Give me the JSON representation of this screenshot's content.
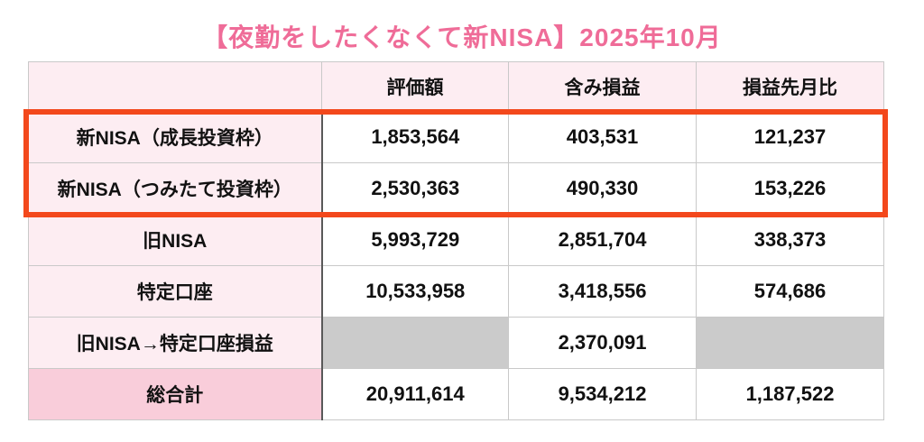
{
  "title": {
    "text": "【夜勤をしたくなくて新NISA】2025年10月"
  },
  "chart_data": {
    "type": "table",
    "title": "【夜勤をしたくなくて新NISA】2025年10月",
    "columns": [
      "",
      "評価額",
      "含み損益",
      "損益先月比"
    ],
    "rows": [
      {
        "label": "新NISA（成長投資枠）",
        "values": [
          "1,853,564",
          "403,531",
          "121,237"
        ],
        "highlighted": true
      },
      {
        "label": "新NISA（つみたて投資枠）",
        "values": [
          "2,530,363",
          "490,330",
          "153,226"
        ],
        "highlighted": true
      },
      {
        "label": "旧NISA",
        "values": [
          "5,993,729",
          "2,851,704",
          "338,373"
        ],
        "highlighted": false
      },
      {
        "label": "特定口座",
        "values": [
          "10,533,958",
          "3,418,556",
          "574,686"
        ],
        "highlighted": false
      },
      {
        "label": "旧NISA→特定口座損益",
        "values": [
          "",
          "2,370,091",
          ""
        ],
        "grayed_columns": [
          0,
          2
        ],
        "highlighted": false
      },
      {
        "label": "総合計",
        "values": [
          "20,911,614",
          "9,534,212",
          "1,187,522"
        ],
        "is_total": true,
        "highlighted": false
      }
    ],
    "highlight_note": "orange box frames the two 新NISA rows"
  },
  "colors": {
    "title-pink": "#ef6c98",
    "cell-pink": "#fdedf2",
    "total-pink": "#f9cdda",
    "gray-cell": "#cbcbcb",
    "accent-orange": "#f3481c",
    "grid": "#c9c9c9",
    "label-divider": "#595959"
  }
}
